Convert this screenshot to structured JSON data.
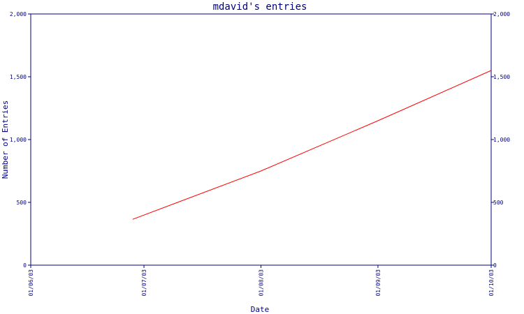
{
  "chart_data": {
    "type": "line",
    "title": "mdavid's entries",
    "xlabel": "Date",
    "ylabel": "Number of Entries",
    "x_ticks": [
      "01/06/03",
      "01/07/03",
      "01/08/03",
      "01/09/03",
      "01/10/03"
    ],
    "y_ticks": [
      "0",
      "500",
      "1,000",
      "1,500",
      "2,000"
    ],
    "ylim": [
      0,
      2000
    ],
    "grid": false,
    "right_axis_mirrored": true,
    "series": [
      {
        "color": "#ff0000",
        "points": [
          {
            "x": "2003-06-28",
            "y": 365
          },
          {
            "x": "2003-08-01",
            "y": 750
          },
          {
            "x": "2003-09-01",
            "y": 1150
          },
          {
            "x": "2003-10-01",
            "y": 1550
          }
        ]
      }
    ],
    "colors": {
      "axis": "#000080",
      "text": "#000080",
      "line": "#ff0000",
      "background": "#ffffff"
    }
  }
}
